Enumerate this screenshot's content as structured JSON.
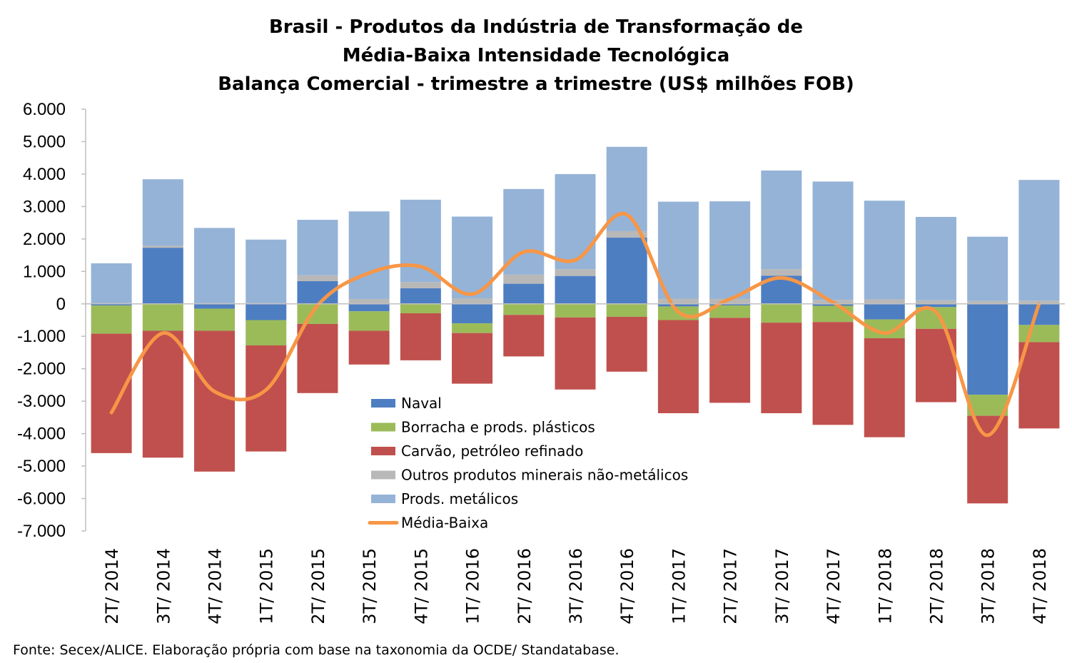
{
  "chart_data": {
    "type": "bar",
    "stacked": true,
    "title": [
      "Brasil - Produtos da Indústria de Transformação de",
      "Média-Baixa Intensidade Tecnológica",
      "Balança Comercial - trimestre a trimestre (US$ milhões FOB)"
    ],
    "xlabel": "",
    "ylabel": "",
    "ylim": [
      -7000,
      6000
    ],
    "y_ticks": [
      "6.000",
      "5.000",
      "4.000",
      "3.000",
      "2.000",
      "1.000",
      "0",
      "-1.000",
      "-2.000",
      "-3.000",
      "-4.000",
      "-5.000",
      "-6.000",
      "-7.000"
    ],
    "y_tick_values": [
      6000,
      5000,
      4000,
      3000,
      2000,
      1000,
      0,
      -1000,
      -2000,
      -3000,
      -4000,
      -5000,
      -6000,
      -7000
    ],
    "grid": false,
    "legend_position": "center-bottom",
    "categories": [
      "2T/ 2014",
      "3T/ 2014",
      "4T/ 2014",
      "1T/ 2015",
      "2T/ 2015",
      "3T/ 2015",
      "4T/ 2015",
      "1T/ 2016",
      "2T/ 2016",
      "3T/ 2016",
      "4T/ 2016",
      "1T/ 2017",
      "2T/ 2017",
      "3T/ 2017",
      "4T/ 2017",
      "1T/ 2018",
      "2T/ 2018",
      "3T/ 2018",
      "4T/ 2018"
    ],
    "series": [
      {
        "name": "Naval",
        "color": "#4e7ec2",
        "values": [
          -50,
          1730,
          -150,
          -500,
          700,
          -230,
          480,
          -600,
          620,
          860,
          2040,
          -80,
          -50,
          870,
          -60,
          -480,
          -100,
          -2800,
          -650
        ]
      },
      {
        "name": "Borracha e prods. plásticos",
        "color": "#9bbb59",
        "values": [
          -870,
          -830,
          -680,
          -780,
          -620,
          -600,
          -290,
          -300,
          -340,
          -420,
          -400,
          -420,
          -380,
          -580,
          -500,
          -580,
          -670,
          -650,
          -530
        ]
      },
      {
        "name": "Carvão, petróleo refinado",
        "color": "#c0504d",
        "values": [
          -3680,
          -3910,
          -4340,
          -3270,
          -2130,
          -1040,
          -1450,
          -1560,
          -1280,
          -2220,
          -1690,
          -2870,
          -2620,
          -2790,
          -3170,
          -3050,
          -2260,
          -2700,
          -2660
        ]
      },
      {
        "name": "Outros produtos minerais não-metálicos",
        "color": "#b8b8b8",
        "values": [
          20,
          60,
          20,
          20,
          180,
          150,
          190,
          170,
          280,
          210,
          200,
          160,
          160,
          200,
          120,
          140,
          110,
          90,
          100
        ]
      },
      {
        "name": "Prods. metálicos",
        "color": "#95b3d7",
        "values": [
          1230,
          2050,
          2320,
          1960,
          1710,
          2700,
          2540,
          2520,
          2640,
          2930,
          2600,
          2990,
          3000,
          3040,
          3650,
          3040,
          2570,
          1980,
          3720
        ]
      },
      {
        "name": "Média-Baixa",
        "type": "line",
        "color": "#f79646",
        "values": [
          -3350,
          -900,
          -2700,
          -2650,
          -50,
          950,
          1150,
          300,
          1600,
          1350,
          2750,
          -250,
          150,
          800,
          50,
          -900,
          -250,
          -4050,
          0
        ]
      }
    ]
  },
  "footer": {
    "source": "Fonte: Secex/ALICE. Elaboração própria com base na taxonomia da OCDE/ Standatabase."
  }
}
